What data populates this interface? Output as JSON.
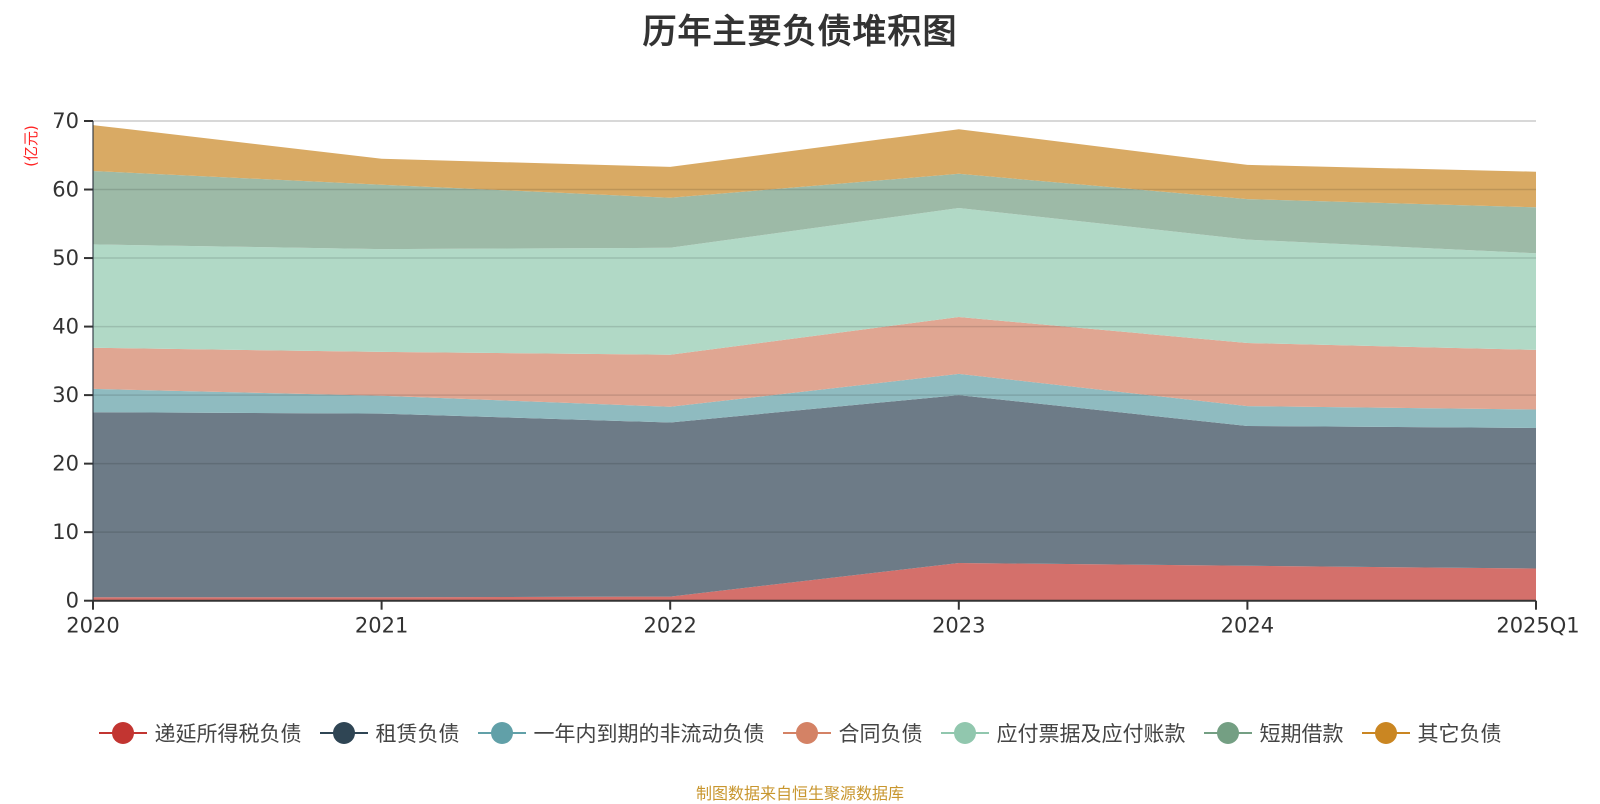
{
  "chart_data": {
    "type": "area",
    "stacked": true,
    "title": "历年主要负债堆积图",
    "ylabel": "(亿元)",
    "xlabel": "",
    "ylim": [
      0,
      70
    ],
    "yticks": [
      0,
      10,
      20,
      30,
      40,
      50,
      60,
      70
    ],
    "categories": [
      "2020",
      "2021",
      "2022",
      "2023",
      "2024",
      "2025Q1"
    ],
    "grid": true,
    "legend_position": "bottom",
    "series": [
      {
        "name": "递延所得税负债",
        "color": "#c23531",
        "fill": "#d4706b",
        "values": [
          0.5,
          0.5,
          0.6,
          5.5,
          5.1,
          4.7
        ]
      },
      {
        "name": "租赁负债",
        "color": "#2f4554",
        "fill": "#6d7b87",
        "values": [
          27.0,
          26.8,
          25.4,
          24.5,
          20.4,
          20.5
        ]
      },
      {
        "name": "一年内到期的非流动负债",
        "color": "#61a0a8",
        "fill": "#8fbbc0",
        "values": [
          3.4,
          2.6,
          2.3,
          3.1,
          2.9,
          2.7
        ]
      },
      {
        "name": "合同负债",
        "color": "#d48265",
        "fill": "#e0a692",
        "values": [
          6.0,
          6.4,
          7.6,
          8.3,
          9.2,
          8.7
        ]
      },
      {
        "name": "应付票据及应付账款",
        "color": "#91c7ae",
        "fill": "#b1d9c6",
        "values": [
          15.1,
          15.0,
          15.6,
          15.9,
          15.1,
          14.1
        ]
      },
      {
        "name": "短期借款",
        "color": "#749f83",
        "fill": "#9dbaa7",
        "values": [
          10.7,
          9.4,
          7.3,
          5.0,
          5.9,
          6.7
        ]
      },
      {
        "name": "其它负债",
        "color": "#ca8622",
        "fill": "#d9aa64",
        "values": [
          6.7,
          3.8,
          4.5,
          6.5,
          5.0,
          5.2
        ]
      }
    ]
  },
  "footer": "制图数据来自恒生聚源数据库"
}
